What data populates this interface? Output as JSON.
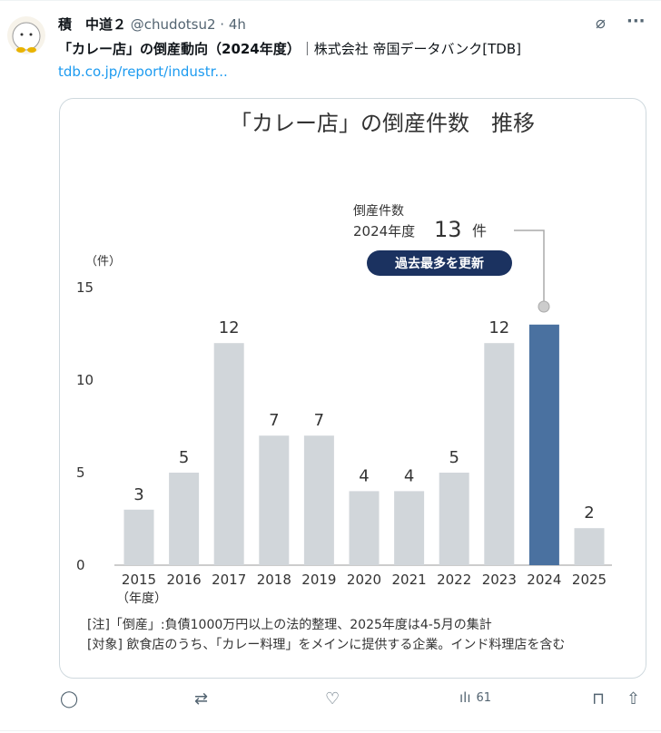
{
  "tweet": {
    "display_name": "積　中道２",
    "handle": "@chudotsu2",
    "time": "4h",
    "text_bold": "「カレー店」の倒産動向（2024年度）",
    "text_rest": "｜株式会社 帝国データバンク[TDB]",
    "link": "tdb.co.jp/report/industr..."
  },
  "actions": {
    "views": "61"
  },
  "icons": [
    "grok-icon",
    "more-icon",
    "reply-icon",
    "retweet-icon",
    "like-icon",
    "views-icon",
    "bookmark-icon",
    "share-icon"
  ],
  "chart_data": {
    "type": "bar",
    "title": "「カレー店」の倒産件数　推移",
    "ylabel": "（件）",
    "xlabel_unit": "（年度）",
    "ylim": [
      0,
      15
    ],
    "yticks": [
      0,
      5,
      10,
      15
    ],
    "grid": false,
    "categories": [
      "2015",
      "2016",
      "2017",
      "2018",
      "2019",
      "2020",
      "2021",
      "2022",
      "2023",
      "2024",
      "2025"
    ],
    "values": [
      3,
      5,
      12,
      7,
      7,
      4,
      4,
      5,
      12,
      13,
      2
    ],
    "highlight": "2024",
    "colors": {
      "bar": "#d1d6da",
      "highlight": "#4a71a0",
      "badge": "#1b3260"
    },
    "annotation": {
      "label": "倒産件数",
      "year": "2024年度",
      "value": "13",
      "unit": "件",
      "badge": "過去最多を更新"
    },
    "notes": [
      "[注]「倒産」:負債1000万円以上の法的整理、2025年度は4-5月の集計",
      "[対象]  飲食店のうち、「カレー料理」をメインに提供する企業。インド料理店を含む"
    ]
  }
}
